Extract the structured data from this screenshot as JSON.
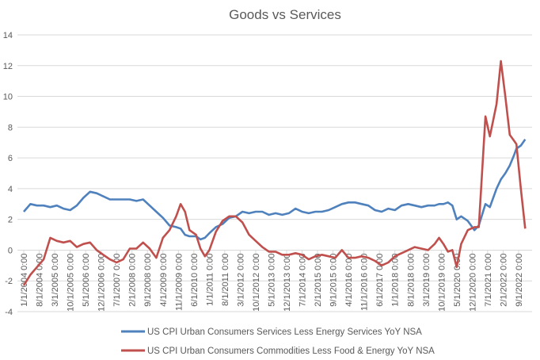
{
  "chart_data": {
    "type": "line",
    "title": "Goods vs Services",
    "xlabel": "",
    "ylabel": "",
    "ylim": [
      -4,
      14
    ],
    "yticks": [
      -4,
      -2,
      0,
      2,
      4,
      6,
      8,
      10,
      12,
      14
    ],
    "grid": true,
    "legend_position": "bottom",
    "xtick_labels": [
      "1/1/2004 0:00",
      "8/1/2004 0:00",
      "3/1/2005 0:00",
      "10/1/2005 0:00",
      "5/1/2006 0:00",
      "12/1/2006 0:00",
      "7/1/2007 0:00",
      "2/1/2008 0:00",
      "9/1/2008 0:00",
      "4/1/2009 0:00",
      "11/1/2009 0:00",
      "6/1/2010 0:00",
      "1/1/2011 0:00",
      "8/1/2011 0:00",
      "3/1/2012 0:00",
      "10/1/2012 0:00",
      "5/1/2013 0:00",
      "12/1/2013 0:00",
      "7/1/2014 0:00",
      "2/1/2015 0:00",
      "9/1/2015 0:00",
      "4/1/2016 0:00",
      "11/1/2016 0:00",
      "6/1/2017 0:00",
      "1/1/2018 0:00",
      "8/1/2018 0:00",
      "3/1/2019 0:00",
      "10/1/2019 0:00",
      "5/1/2020 0:00",
      "12/1/2020 0:00",
      "7/1/2021 0:00",
      "2/1/2022 0:00",
      "9/1/2022 0:00"
    ],
    "x": [
      "2004-01",
      "2004-04",
      "2004-07",
      "2004-10",
      "2005-01",
      "2005-04",
      "2005-07",
      "2005-10",
      "2006-01",
      "2006-04",
      "2006-07",
      "2006-10",
      "2007-01",
      "2007-04",
      "2007-07",
      "2007-10",
      "2008-01",
      "2008-04",
      "2008-07",
      "2008-10",
      "2009-01",
      "2009-04",
      "2009-07",
      "2009-10",
      "2009-12",
      "2010-02",
      "2010-04",
      "2010-07",
      "2010-09",
      "2010-11",
      "2011-01",
      "2011-04",
      "2011-07",
      "2011-10",
      "2012-01",
      "2012-04",
      "2012-07",
      "2012-10",
      "2013-01",
      "2013-04",
      "2013-07",
      "2013-10",
      "2014-01",
      "2014-04",
      "2014-07",
      "2014-10",
      "2015-01",
      "2015-04",
      "2015-07",
      "2015-10",
      "2016-01",
      "2016-04",
      "2016-07",
      "2016-10",
      "2017-01",
      "2017-04",
      "2017-07",
      "2017-10",
      "2018-01",
      "2018-04",
      "2018-07",
      "2018-10",
      "2019-01",
      "2019-04",
      "2019-07",
      "2019-09",
      "2019-11",
      "2020-01",
      "2020-03",
      "2020-05",
      "2020-07",
      "2020-10",
      "2021-01",
      "2021-03",
      "2021-06",
      "2021-08",
      "2021-11",
      "2022-01",
      "2022-03",
      "2022-05",
      "2022-07",
      "2022-08",
      "2022-10",
      "2022-12"
    ],
    "series": [
      {
        "name": "US CPI Urban Consumers Services Less Energy Services YoY NSA",
        "color": "#4F81BD",
        "values": [
          2.5,
          3.0,
          2.9,
          2.9,
          2.8,
          2.9,
          2.7,
          2.6,
          2.9,
          3.4,
          3.8,
          3.7,
          3.5,
          3.3,
          3.3,
          3.3,
          3.3,
          3.2,
          3.3,
          2.9,
          2.5,
          2.1,
          1.6,
          1.5,
          1.4,
          1.0,
          0.9,
          0.9,
          0.7,
          0.8,
          1.1,
          1.5,
          1.7,
          2.1,
          2.2,
          2.5,
          2.4,
          2.5,
          2.5,
          2.3,
          2.4,
          2.3,
          2.4,
          2.7,
          2.5,
          2.4,
          2.5,
          2.5,
          2.6,
          2.8,
          3.0,
          3.1,
          3.1,
          3.0,
          2.9,
          2.6,
          2.5,
          2.7,
          2.6,
          2.9,
          3.0,
          2.9,
          2.8,
          2.9,
          2.9,
          3.0,
          3.0,
          3.1,
          2.9,
          2.0,
          2.2,
          1.9,
          1.3,
          1.6,
          3.0,
          2.8,
          4.0,
          4.6,
          5.0,
          5.5,
          6.2,
          6.6,
          6.8,
          7.2
        ]
      },
      {
        "name": "US CPI Urban Consumers Commodities Less Food & Energy YoY NSA",
        "color": "#C0504D",
        "values": [
          -2.3,
          -1.6,
          -1.1,
          -0.6,
          0.8,
          0.6,
          0.5,
          0.6,
          0.2,
          0.4,
          0.5,
          0.0,
          -0.3,
          -0.6,
          -0.8,
          -0.6,
          0.1,
          0.1,
          0.5,
          0.1,
          -0.5,
          0.8,
          1.3,
          2.2,
          3.0,
          2.5,
          1.3,
          1.0,
          0.1,
          -0.4,
          0.0,
          1.2,
          1.9,
          2.2,
          2.2,
          1.8,
          1.0,
          0.6,
          0.2,
          -0.1,
          -0.1,
          -0.3,
          -0.3,
          -0.2,
          -0.3,
          -0.6,
          -0.4,
          -0.3,
          -0.4,
          -0.5,
          0.0,
          -0.5,
          -0.5,
          -0.4,
          -0.5,
          -0.7,
          -1.0,
          -0.8,
          -0.4,
          -0.2,
          0.0,
          0.2,
          0.1,
          0.0,
          0.4,
          0.8,
          0.4,
          -0.1,
          0.0,
          -1.1,
          0.4,
          1.3,
          1.5,
          1.5,
          8.7,
          7.4,
          9.5,
          12.3,
          10.0,
          7.5,
          7.1,
          6.9,
          4.0,
          1.4
        ]
      }
    ]
  }
}
